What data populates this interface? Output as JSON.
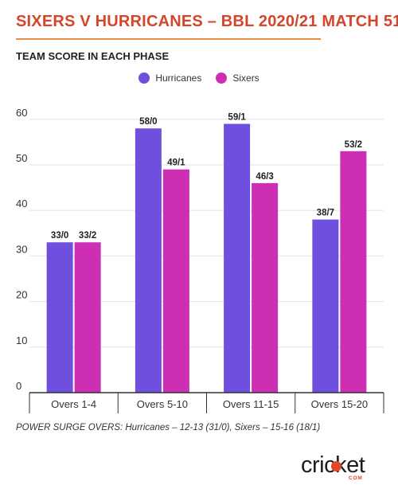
{
  "header": {
    "title": "SIXERS V HURRICANES – BBL 2020/21 MATCH 51"
  },
  "colors": {
    "title": "#d4452a",
    "title_rule": "#ee8a3c",
    "hurricanes": "#6f4fde",
    "sixers": "#cc2fb3",
    "grid": "#e3e3e3",
    "axis": "#333333"
  },
  "chart_data": {
    "type": "bar",
    "title": "TEAM SCORE IN EACH PHASE",
    "categories": [
      "Overs 1-4",
      "Overs 5-10",
      "Overs 11-15",
      "Overs 15-20"
    ],
    "series": [
      {
        "name": "Hurricanes",
        "values": [
          33,
          58,
          59,
          38
        ],
        "labels": [
          "33/0",
          "58/0",
          "59/1",
          "38/7"
        ],
        "color": "#6f4fde"
      },
      {
        "name": "Sixers",
        "values": [
          33,
          49,
          46,
          53
        ],
        "labels": [
          "33/2",
          "49/1",
          "46/3",
          "53/2"
        ],
        "color": "#cc2fb3"
      }
    ],
    "yticks": [
      0,
      10,
      20,
      30,
      40,
      50,
      60
    ],
    "ylim": [
      0,
      62
    ],
    "grid": true,
    "legend_position": "top-center"
  },
  "footnote": "POWER SURGE OVERS: Hurricanes – 12-13 (31/0), Sixers – 15-16 (18/1)",
  "logo": {
    "word": "cricket",
    "sub": "COM",
    "icon": "cricket-ball-icon"
  }
}
